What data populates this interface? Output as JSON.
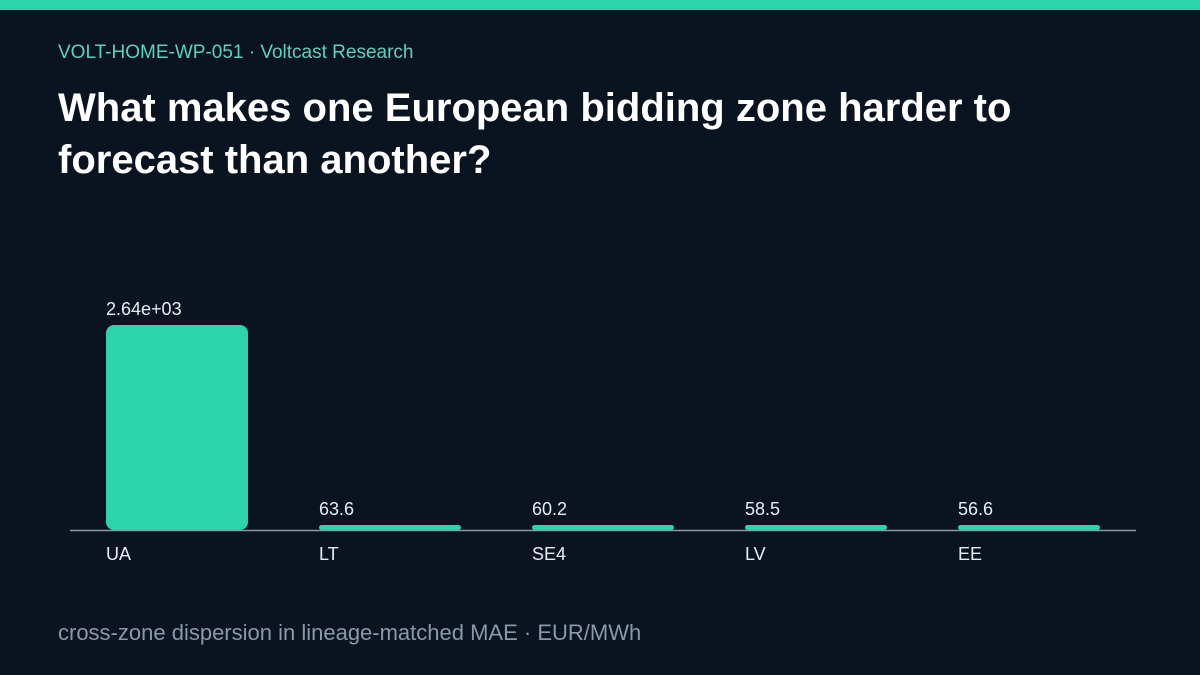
{
  "header": {
    "kicker": "VOLT-HOME-WP-051 · Voltcast Research",
    "title": "What makes one European bidding zone harder to forecast than another?"
  },
  "footer": {
    "caption": "cross-zone dispersion in lineage-matched MAE · EUR/MWh"
  },
  "colors": {
    "background": "#0a1420",
    "accent": "#2dd4aa",
    "kicker": "#5fd1b4",
    "axis": "#8a98aa",
    "label": "#e6edf3"
  },
  "chart_data": {
    "type": "bar",
    "categories": [
      "UA",
      "LT",
      "SE4",
      "LV",
      "EE"
    ],
    "values": [
      2640,
      63.6,
      60.2,
      58.5,
      56.6
    ],
    "value_labels": [
      "2.64e+03",
      "63.6",
      "60.2",
      "58.5",
      "56.6"
    ],
    "title": "",
    "xlabel": "",
    "ylabel": "",
    "ylim": [
      0,
      2640
    ],
    "grid": false
  }
}
